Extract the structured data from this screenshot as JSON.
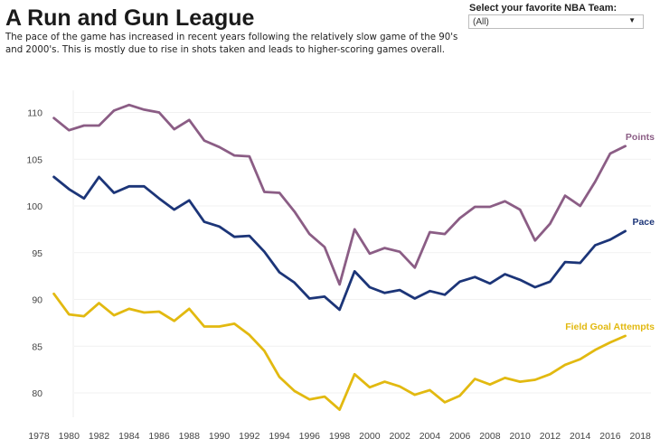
{
  "header": {
    "title": "A Run and Gun League",
    "subtitle": "The pace of the game has increased in recent years following the relatively slow game of the 90's and 2000's. This is mostly due to rise in shots taken and leads to higher-scoring games overall."
  },
  "filter": {
    "label": "Select your favorite NBA Team:",
    "value": "(All)",
    "icon": "dropdown-arrow-icon"
  },
  "chart_data": {
    "type": "line",
    "title": "A Run and Gun League",
    "xlabel": "",
    "ylabel": "",
    "xlim": [
      1977,
      2019
    ],
    "ylim": [
      77,
      112.5
    ],
    "grid": true,
    "legend": "direct labels at line ends (right)",
    "x_ticks": [
      "1978",
      "1980",
      "1982",
      "1984",
      "1986",
      "1988",
      "1990",
      "1992",
      "1994",
      "1996",
      "1998",
      "2000",
      "2002",
      "2004",
      "2006",
      "2008",
      "2010",
      "2012",
      "2014",
      "2016",
      "2018"
    ],
    "y_ticks": [
      "80",
      "85",
      "90",
      "95",
      "100",
      "105",
      "110"
    ],
    "x": [
      1979,
      1980,
      1981,
      1982,
      1983,
      1984,
      1985,
      1986,
      1987,
      1988,
      1989,
      1990,
      1991,
      1992,
      1993,
      1994,
      1995,
      1996,
      1997,
      1998,
      1999,
      2000,
      2001,
      2002,
      2003,
      2004,
      2005,
      2006,
      2007,
      2008,
      2009,
      2010,
      2011,
      2012,
      2013,
      2014,
      2015,
      2016,
      2017
    ],
    "series": [
      {
        "name": "Points",
        "color": "#8b5d85",
        "values": [
          109.4,
          108.1,
          108.6,
          108.6,
          110.2,
          110.8,
          110.3,
          110.0,
          108.2,
          109.2,
          107.0,
          106.3,
          105.4,
          105.3,
          101.5,
          101.4,
          99.4,
          97.0,
          95.6,
          91.6,
          97.5,
          94.9,
          95.5,
          95.1,
          93.4,
          97.2,
          97.0,
          98.7,
          99.9,
          99.9,
          100.5,
          99.6,
          96.3,
          98.1,
          101.1,
          100.0,
          102.6,
          105.6,
          106.4
        ]
      },
      {
        "name": "Pace",
        "color": "#1c3578",
        "values": [
          103.1,
          101.8,
          100.8,
          103.1,
          101.4,
          102.1,
          102.1,
          100.8,
          99.6,
          100.6,
          98.3,
          97.8,
          96.7,
          96.8,
          95.1,
          92.9,
          91.8,
          90.1,
          90.3,
          88.9,
          93.0,
          91.3,
          90.7,
          91.0,
          90.1,
          90.9,
          90.5,
          91.9,
          92.4,
          91.7,
          92.7,
          92.1,
          91.3,
          91.9,
          94.0,
          93.9,
          95.8,
          96.4,
          97.3
        ]
      },
      {
        "name": "Field Goal Attempts",
        "color": "#e2b910",
        "values": [
          90.6,
          88.4,
          88.2,
          89.6,
          88.3,
          89.0,
          88.6,
          88.7,
          87.7,
          89.0,
          87.1,
          87.1,
          87.4,
          86.2,
          84.5,
          81.7,
          80.2,
          79.3,
          79.6,
          78.2,
          82.0,
          80.6,
          81.2,
          80.7,
          79.8,
          80.3,
          79.0,
          79.7,
          81.5,
          80.9,
          81.6,
          81.2,
          81.4,
          82.0,
          83.0,
          83.6,
          84.6,
          85.4,
          86.1
        ]
      }
    ]
  }
}
